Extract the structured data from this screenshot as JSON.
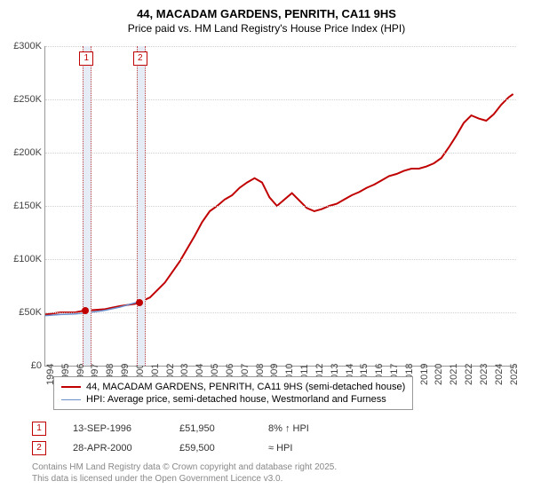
{
  "title_line1": "44, MACADAM GARDENS, PENRITH, CA11 9HS",
  "title_line2": "Price paid vs. HM Land Registry's House Price Index (HPI)",
  "chart": {
    "type": "line",
    "background_color": "#ffffff",
    "grid_color": "#d0d0d0",
    "x_min": 1994,
    "x_max": 2025.5,
    "y_min": 0,
    "y_max": 300000,
    "y_ticks": [
      0,
      50000,
      100000,
      150000,
      200000,
      250000,
      300000
    ],
    "y_tick_labels": [
      "£0",
      "£50K",
      "£100K",
      "£150K",
      "£200K",
      "£250K",
      "£300K"
    ],
    "x_ticks": [
      1994,
      1995,
      1996,
      1997,
      1998,
      1999,
      2000,
      2001,
      2002,
      2003,
      2004,
      2005,
      2006,
      2007,
      2008,
      2009,
      2010,
      2011,
      2012,
      2013,
      2014,
      2015,
      2016,
      2017,
      2018,
      2019,
      2020,
      2021,
      2022,
      2023,
      2024,
      2025
    ],
    "marker_bands": [
      {
        "num": "1",
        "x_start": 1996.5,
        "x_end": 1997.0
      },
      {
        "num": "2",
        "x_start": 2000.1,
        "x_end": 2000.6
      }
    ],
    "series": [
      {
        "name": "property",
        "color": "#c00000",
        "width": 2,
        "points": [
          [
            1994,
            48000
          ],
          [
            1995,
            50000
          ],
          [
            1996,
            50000
          ],
          [
            1996.7,
            51950
          ],
          [
            1997,
            52000
          ],
          [
            1998,
            53000
          ],
          [
            1999,
            56000
          ],
          [
            2000,
            58000
          ],
          [
            2000.3,
            59500
          ],
          [
            2001,
            64000
          ],
          [
            2001.5,
            71000
          ],
          [
            2002,
            78000
          ],
          [
            2002.5,
            88000
          ],
          [
            2003,
            98000
          ],
          [
            2003.5,
            110000
          ],
          [
            2004,
            122000
          ],
          [
            2004.5,
            135000
          ],
          [
            2005,
            145000
          ],
          [
            2005.5,
            150000
          ],
          [
            2006,
            156000
          ],
          [
            2006.5,
            160000
          ],
          [
            2007,
            167000
          ],
          [
            2007.5,
            172000
          ],
          [
            2008,
            176000
          ],
          [
            2008.5,
            172000
          ],
          [
            2009,
            158000
          ],
          [
            2009.5,
            150000
          ],
          [
            2010,
            156000
          ],
          [
            2010.5,
            162000
          ],
          [
            2011,
            155000
          ],
          [
            2011.5,
            148000
          ],
          [
            2012,
            145000
          ],
          [
            2012.5,
            147000
          ],
          [
            2013,
            150000
          ],
          [
            2013.5,
            152000
          ],
          [
            2014,
            156000
          ],
          [
            2014.5,
            160000
          ],
          [
            2015,
            163000
          ],
          [
            2015.5,
            167000
          ],
          [
            2016,
            170000
          ],
          [
            2016.5,
            174000
          ],
          [
            2017,
            178000
          ],
          [
            2017.5,
            180000
          ],
          [
            2018,
            183000
          ],
          [
            2018.5,
            185000
          ],
          [
            2019,
            185000
          ],
          [
            2019.5,
            187000
          ],
          [
            2020,
            190000
          ],
          [
            2020.5,
            195000
          ],
          [
            2021,
            205000
          ],
          [
            2021.5,
            216000
          ],
          [
            2022,
            228000
          ],
          [
            2022.5,
            235000
          ],
          [
            2023,
            232000
          ],
          [
            2023.5,
            230000
          ],
          [
            2024,
            236000
          ],
          [
            2024.5,
            245000
          ],
          [
            2025,
            252000
          ],
          [
            2025.3,
            255000
          ]
        ],
        "sale_dots": [
          {
            "x": 1996.7,
            "y": 51950,
            "color": "#c00000"
          },
          {
            "x": 2000.3,
            "y": 59500,
            "color": "#c00000"
          }
        ]
      },
      {
        "name": "hpi",
        "color": "#6a8fcc",
        "width": 1.5,
        "points": [
          [
            1994,
            47000
          ],
          [
            1995,
            48000
          ],
          [
            1996,
            48500
          ],
          [
            1997,
            50000
          ],
          [
            1998,
            52000
          ],
          [
            1999,
            55000
          ],
          [
            2000,
            59000
          ],
          [
            2000.3,
            60000
          ]
        ]
      }
    ]
  },
  "legend": {
    "items": [
      {
        "color": "#c00000",
        "width": 2,
        "label": "44, MACADAM GARDENS, PENRITH, CA11 9HS (semi-detached house)"
      },
      {
        "color": "#6a8fcc",
        "width": 1.5,
        "label": "HPI: Average price, semi-detached house, Westmorland and Furness"
      }
    ]
  },
  "datapoints": [
    {
      "num": "1",
      "date": "13-SEP-1996",
      "price": "£51,950",
      "delta": "8% ↑ HPI"
    },
    {
      "num": "2",
      "date": "28-APR-2000",
      "price": "£59,500",
      "delta": "≈ HPI"
    }
  ],
  "footer_line1": "Contains HM Land Registry data © Crown copyright and database right 2025.",
  "footer_line2": "This data is licensed under the Open Government Licence v3.0."
}
